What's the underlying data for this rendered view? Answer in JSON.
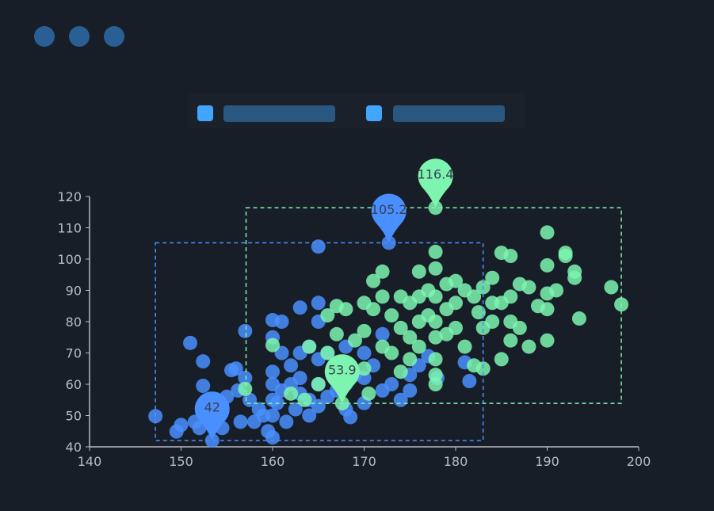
{
  "header": {
    "dots": 3
  },
  "legend": {
    "items": [
      {
        "icon": "legend-square",
        "color": "#42a5ff"
      },
      {
        "icon": "legend-square",
        "color": "#42a5ff"
      }
    ]
  },
  "chart_data": {
    "type": "scatter",
    "xlim": [
      140,
      200
    ],
    "ylim": [
      40,
      120
    ],
    "x_ticks": [
      "140",
      "150",
      "160",
      "170",
      "180",
      "190",
      "200"
    ],
    "y_ticks": [
      "40",
      "50",
      "60",
      "70",
      "80",
      "90",
      "100",
      "110",
      "120"
    ],
    "grid": false,
    "series": [
      {
        "color": "#4a8fff",
        "points": [
          [
            147.2,
            49.8
          ],
          [
            149.5,
            44.9
          ],
          [
            150,
            47
          ],
          [
            151,
            73.2
          ],
          [
            151.5,
            48
          ],
          [
            152,
            46
          ],
          [
            152.4,
            67.3
          ],
          [
            152.4,
            59.5
          ],
          [
            153.4,
            42
          ],
          [
            153.5,
            53
          ],
          [
            154.5,
            46
          ],
          [
            155,
            56
          ],
          [
            155.5,
            64.5
          ],
          [
            156,
            65
          ],
          [
            156.2,
            58
          ],
          [
            156.5,
            48
          ],
          [
            157,
            62
          ],
          [
            157,
            77
          ],
          [
            157.5,
            55
          ],
          [
            158,
            48
          ],
          [
            158.5,
            52
          ],
          [
            159,
            50
          ],
          [
            159.5,
            45
          ],
          [
            160,
            80.5
          ],
          [
            160,
            75
          ],
          [
            160,
            64
          ],
          [
            160,
            60
          ],
          [
            160,
            55
          ],
          [
            160,
            50
          ],
          [
            160,
            43
          ],
          [
            160.5,
            54
          ],
          [
            161,
            80
          ],
          [
            161,
            70
          ],
          [
            161,
            58
          ],
          [
            161.5,
            48
          ],
          [
            162,
            66
          ],
          [
            162,
            60
          ],
          [
            162.5,
            52
          ],
          [
            163,
            84.5
          ],
          [
            163,
            70
          ],
          [
            163,
            62
          ],
          [
            163,
            57
          ],
          [
            164,
            72
          ],
          [
            164,
            55
          ],
          [
            164,
            50
          ],
          [
            165,
            104
          ],
          [
            165,
            86
          ],
          [
            165,
            80
          ],
          [
            165,
            68
          ],
          [
            165,
            60
          ],
          [
            165,
            53
          ],
          [
            166,
            70
          ],
          [
            166,
            56
          ],
          [
            167,
            65
          ],
          [
            167,
            58
          ],
          [
            168,
            72
          ],
          [
            168,
            60
          ],
          [
            168,
            52
          ],
          [
            168.5,
            49.5
          ],
          [
            169,
            63
          ],
          [
            170,
            70
          ],
          [
            170,
            62
          ],
          [
            170,
            54
          ],
          [
            171,
            66
          ],
          [
            172,
            76
          ],
          [
            172,
            58
          ],
          [
            172.7,
            105.2
          ],
          [
            173,
            60
          ],
          [
            174,
            55
          ],
          [
            175,
            63
          ],
          [
            175,
            58
          ],
          [
            176,
            66
          ],
          [
            177,
            69
          ],
          [
            178,
            62
          ],
          [
            181,
            67
          ],
          [
            181.5,
            61
          ]
        ],
        "mark_points": [
          {
            "label": "105.2",
            "x": 172.7,
            "y": 105.2
          },
          {
            "label": "42",
            "x": 153.4,
            "y": 42
          }
        ],
        "mark_area": {
          "x": [
            147.2,
            183
          ],
          "y": [
            42,
            105.2
          ]
        }
      },
      {
        "color": "#7df5b0",
        "points": [
          [
            157,
            58.5
          ],
          [
            160,
            72.5
          ],
          [
            162,
            57
          ],
          [
            163.5,
            55
          ],
          [
            164,
            72
          ],
          [
            165,
            60
          ],
          [
            166,
            82
          ],
          [
            166,
            70
          ],
          [
            167,
            85
          ],
          [
            167,
            76
          ],
          [
            167.6,
            53.9
          ],
          [
            168,
            84
          ],
          [
            168,
            65
          ],
          [
            169,
            74
          ],
          [
            170,
            86
          ],
          [
            170,
            77
          ],
          [
            170,
            65
          ],
          [
            170.5,
            57
          ],
          [
            171,
            93
          ],
          [
            171,
            84
          ],
          [
            172,
            88
          ],
          [
            172,
            96
          ],
          [
            172,
            72
          ],
          [
            173,
            82
          ],
          [
            173,
            70
          ],
          [
            174,
            88
          ],
          [
            174,
            78
          ],
          [
            174,
            64
          ],
          [
            175,
            86
          ],
          [
            175,
            75
          ],
          [
            175,
            68
          ],
          [
            176,
            96
          ],
          [
            176,
            88
          ],
          [
            176,
            80
          ],
          [
            176,
            72
          ],
          [
            177,
            90
          ],
          [
            177,
            82
          ],
          [
            177.8,
            116.4
          ],
          [
            177.8,
            102.3
          ],
          [
            177.8,
            97
          ],
          [
            177.8,
            88
          ],
          [
            177.8,
            80
          ],
          [
            177.8,
            75
          ],
          [
            177.8,
            68
          ],
          [
            177.8,
            63
          ],
          [
            177.8,
            60
          ],
          [
            179,
            92
          ],
          [
            179,
            84
          ],
          [
            179,
            76
          ],
          [
            180,
            93
          ],
          [
            180,
            86
          ],
          [
            180,
            78
          ],
          [
            181,
            90
          ],
          [
            181,
            72
          ],
          [
            182,
            88
          ],
          [
            182,
            66
          ],
          [
            182.5,
            83
          ],
          [
            183,
            91
          ],
          [
            183,
            78
          ],
          [
            183,
            65
          ],
          [
            184,
            94
          ],
          [
            184,
            86
          ],
          [
            184,
            80
          ],
          [
            185,
            102
          ],
          [
            185,
            86
          ],
          [
            185,
            68
          ],
          [
            186,
            101
          ],
          [
            186,
            88
          ],
          [
            186,
            80
          ],
          [
            186,
            74
          ],
          [
            187,
            92
          ],
          [
            187,
            78
          ],
          [
            188,
            91
          ],
          [
            188,
            72
          ],
          [
            189,
            85
          ],
          [
            190,
            108.5
          ],
          [
            190,
            98
          ],
          [
            190,
            89
          ],
          [
            190,
            84
          ],
          [
            190,
            74
          ],
          [
            191,
            90
          ],
          [
            192,
            102
          ],
          [
            192,
            101
          ],
          [
            193,
            94
          ],
          [
            193,
            96
          ],
          [
            193.5,
            81
          ],
          [
            197,
            91
          ],
          [
            198.1,
            85.5
          ]
        ],
        "mark_points": [
          {
            "label": "116.4",
            "x": 177.8,
            "y": 116.4
          },
          {
            "label": "53.9",
            "x": 167.6,
            "y": 53.9
          }
        ],
        "mark_area": {
          "x": [
            157.1,
            198.1
          ],
          "y": [
            53.9,
            116.4
          ]
        }
      }
    ]
  }
}
